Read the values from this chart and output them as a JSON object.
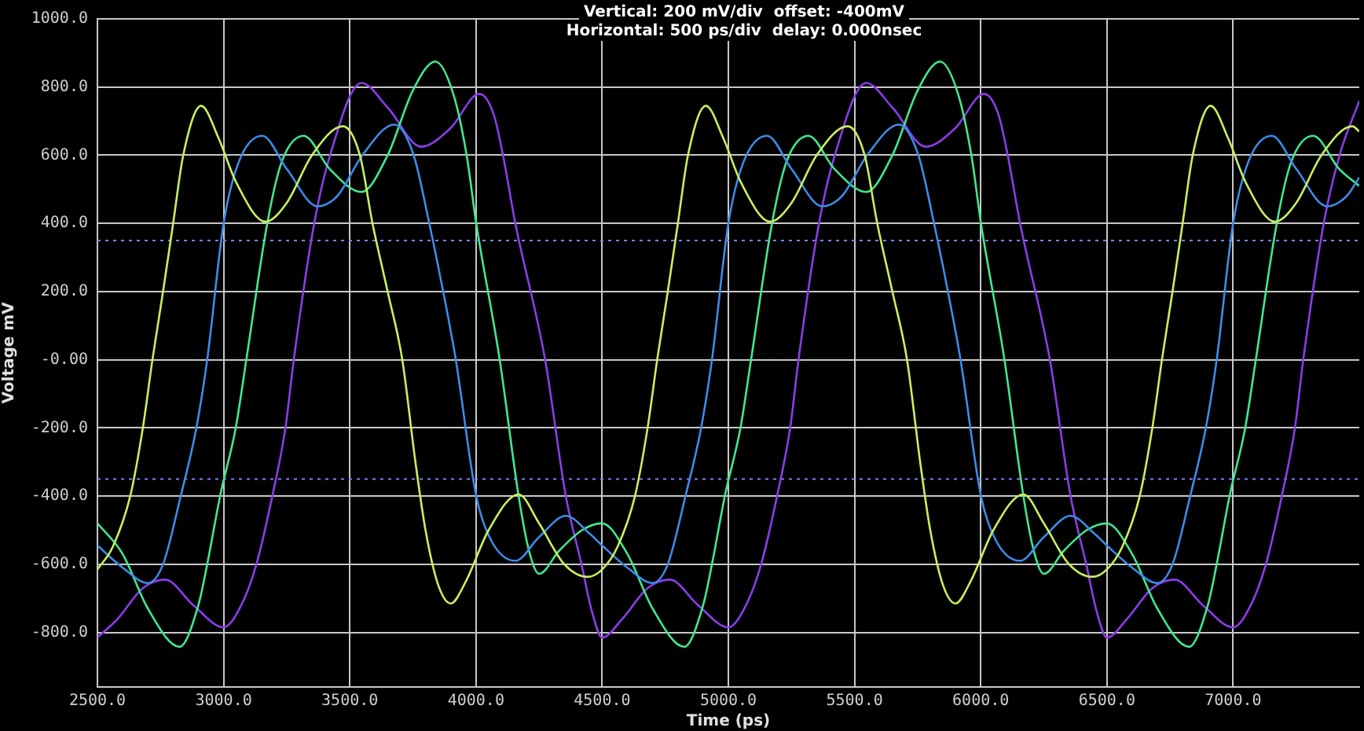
{
  "chart_data": {
    "type": "line",
    "title": "Vertical: 200 mV/div  offset: -400mV",
    "subtitle": "Horizontal: 500 ps/div  delay: 0.000nsec",
    "xlabel": "Time (ps)",
    "ylabel": "Voltage mV",
    "xlim": [
      2500,
      7500
    ],
    "ylim": [
      -960,
      1000
    ],
    "xticks": [
      {
        "value": 2500,
        "label": "2500.0"
      },
      {
        "value": 3000,
        "label": "3000.0"
      },
      {
        "value": 3500,
        "label": "3500.0"
      },
      {
        "value": 4000,
        "label": "4000.0"
      },
      {
        "value": 4500,
        "label": "4500.0"
      },
      {
        "value": 5000,
        "label": "5000.0"
      },
      {
        "value": 5500,
        "label": "5500.0"
      },
      {
        "value": 6000,
        "label": "6000.0"
      },
      {
        "value": 6500,
        "label": "6500.0"
      },
      {
        "value": 7000,
        "label": "7000.0"
      }
    ],
    "yticks": [
      {
        "value": 1000,
        "label": "1000.0"
      },
      {
        "value": 800,
        "label": "800.0"
      },
      {
        "value": 600,
        "label": "600.0"
      },
      {
        "value": 400,
        "label": "400.0"
      },
      {
        "value": 200,
        "label": "200.0"
      },
      {
        "value": 0,
        "label": "-0.00"
      },
      {
        "value": -200,
        "label": "-200.0"
      },
      {
        "value": -400,
        "label": "-400.0"
      },
      {
        "value": -600,
        "label": "-600.0"
      },
      {
        "value": -800,
        "label": "-800.0"
      }
    ],
    "grid": true,
    "legend": false,
    "marker": "none",
    "line_style": "solid",
    "ref_lines": [
      {
        "axis": "y",
        "value": 350,
        "color": "#8080ff",
        "line_style": "dotted"
      },
      {
        "axis": "y",
        "value": -350,
        "color": "#8080ff",
        "line_style": "dotted"
      }
    ],
    "series": [
      {
        "color": "#c8f060",
        "x": [
          2500,
          2560,
          2630,
          2680,
          2718,
          2760,
          2800,
          2840,
          2911,
          2980,
          3050,
          3166,
          3250,
          3350,
          3472,
          3540,
          3590,
          3650,
          3708,
          3760,
          3800,
          3850,
          3900,
          3960,
          4050,
          4169,
          4250,
          4350,
          4443,
          4500,
          4560,
          4630,
          4680,
          4718,
          4760,
          4800,
          4840,
          4911,
          4980,
          5050,
          5166,
          5250,
          5350,
          5472,
          5540,
          5590,
          5650,
          5708,
          5760,
          5800,
          5850,
          5900,
          5960,
          6050,
          6169,
          6250,
          6350,
          6443,
          6500,
          6560,
          6630,
          6680,
          6718,
          6760,
          6800,
          6840,
          6911,
          6980,
          7050,
          7166,
          7250,
          7350,
          7472,
          7500
        ],
        "values": [
          -615,
          -550,
          -400,
          -200,
          0,
          200,
          400,
          600,
          745,
          650,
          520,
          405,
          460,
          600,
          685,
          600,
          400,
          200,
          0,
          -300,
          -500,
          -660,
          -715,
          -650,
          -500,
          -395,
          -480,
          -600,
          -637,
          -615,
          -550,
          -400,
          -200,
          0,
          200,
          400,
          600,
          745,
          650,
          520,
          405,
          460,
          600,
          685,
          600,
          400,
          200,
          0,
          -300,
          -500,
          -660,
          -715,
          -650,
          -500,
          -395,
          -480,
          -600,
          -637,
          -615,
          -550,
          -400,
          -200,
          0,
          200,
          400,
          600,
          745,
          650,
          520,
          405,
          460,
          600,
          685,
          670
        ]
      },
      {
        "color": "#3c8ce8",
        "x": [
          2500,
          2600,
          2700,
          2760,
          2830,
          2892,
          2935,
          3000,
          3060,
          3153,
          3250,
          3372,
          3450,
          3550,
          3676,
          3753,
          3815,
          3870,
          3920,
          4001,
          4060,
          4156,
          4250,
          4356,
          4450,
          4500,
          4600,
          4700,
          4760,
          4830,
          4892,
          4935,
          5000,
          5060,
          5153,
          5250,
          5372,
          5450,
          5550,
          5676,
          5753,
          5815,
          5870,
          5920,
          6001,
          6060,
          6156,
          6250,
          6356,
          6450,
          6500,
          6600,
          6700,
          6760,
          6830,
          6892,
          6935,
          7000,
          7060,
          7153,
          7250,
          7372,
          7450,
          7500
        ],
        "values": [
          -545,
          -610,
          -655,
          -600,
          -400,
          -200,
          0,
          400,
          580,
          657,
          560,
          450,
          480,
          600,
          690,
          600,
          400,
          200,
          0,
          -400,
          -530,
          -590,
          -520,
          -458,
          -510,
          -545,
          -610,
          -655,
          -600,
          -400,
          -200,
          0,
          400,
          580,
          657,
          560,
          450,
          480,
          600,
          690,
          600,
          400,
          200,
          0,
          -400,
          -530,
          -590,
          -520,
          -458,
          -510,
          -545,
          -610,
          -655,
          -600,
          -400,
          -200,
          0,
          400,
          580,
          657,
          560,
          450,
          480,
          535
        ]
      },
      {
        "color": "#40e890",
        "x": [
          2500,
          2600,
          2700,
          2825,
          2900,
          2935,
          2986,
          3048,
          3090,
          3173,
          3230,
          3317,
          3420,
          3546,
          3650,
          3750,
          3839,
          3910,
          3963,
          4001,
          4094,
          4169,
          4210,
          4250,
          4330,
          4420,
          4500,
          4600,
          4700,
          4825,
          4900,
          4935,
          4986,
          5048,
          5090,
          5173,
          5230,
          5317,
          5420,
          5546,
          5650,
          5750,
          5839,
          5910,
          5963,
          6001,
          6094,
          6169,
          6210,
          6250,
          6330,
          6420,
          6500,
          6600,
          6700,
          6825,
          6900,
          6935,
          6986,
          7048,
          7090,
          7173,
          7230,
          7317,
          7420,
          7500
        ],
        "values": [
          -480,
          -570,
          -730,
          -842,
          -720,
          -600,
          -400,
          -200,
          0,
          400,
          580,
          657,
          560,
          492,
          600,
          790,
          875,
          780,
          600,
          400,
          0,
          -400,
          -560,
          -628,
          -560,
          -500,
          -480,
          -570,
          -730,
          -842,
          -720,
          -600,
          -400,
          -200,
          0,
          400,
          580,
          657,
          560,
          492,
          600,
          790,
          875,
          780,
          600,
          400,
          0,
          -400,
          -560,
          -628,
          -560,
          -500,
          -480,
          -570,
          -730,
          -842,
          -720,
          -600,
          -400,
          -200,
          0,
          400,
          580,
          657,
          560,
          510
        ]
      },
      {
        "color": "#8c3ce8",
        "x": [
          2500,
          2580,
          2680,
          2768,
          2880,
          3000,
          3070,
          3130,
          3193,
          3245,
          3278,
          3359,
          3422,
          3546,
          3650,
          3783,
          3900,
          4013,
          4070,
          4107,
          4156,
          4274,
          4356,
          4418,
          4460,
          4500,
          4580,
          4680,
          4768,
          4880,
          5000,
          5070,
          5130,
          5193,
          5245,
          5278,
          5359,
          5422,
          5546,
          5650,
          5783,
          5900,
          6013,
          6070,
          6107,
          6156,
          6274,
          6356,
          6418,
          6460,
          6500,
          6580,
          6680,
          6768,
          6880,
          7000,
          7070,
          7130,
          7193,
          7245,
          7278,
          7359,
          7422,
          7500
        ],
        "values": [
          -815,
          -760,
          -670,
          -645,
          -720,
          -785,
          -720,
          -600,
          -400,
          -200,
          0,
          400,
          600,
          812,
          740,
          625,
          680,
          780,
          720,
          600,
          400,
          0,
          -400,
          -600,
          -740,
          -815,
          -760,
          -670,
          -645,
          -720,
          -785,
          -720,
          -600,
          -400,
          -200,
          0,
          400,
          600,
          812,
          740,
          625,
          680,
          780,
          720,
          600,
          400,
          0,
          -400,
          -600,
          -740,
          -815,
          -760,
          -670,
          -645,
          -720,
          -785,
          -720,
          -600,
          -400,
          -200,
          0,
          400,
          600,
          760
        ]
      }
    ]
  }
}
